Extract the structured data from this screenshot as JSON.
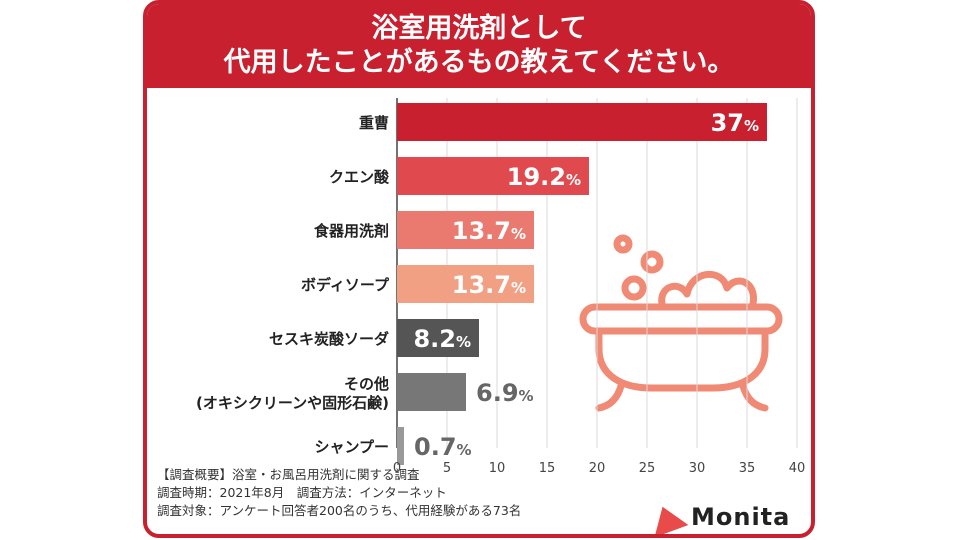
{
  "header": {
    "title_line1": "浴室用洗剤として",
    "title_line2": "代用したことがあるもの教えてください。"
  },
  "chart_data": {
    "type": "bar",
    "orientation": "horizontal",
    "title": "浴室用洗剤として代用したことがあるもの教えてください。",
    "categories": [
      "重曹",
      "クエン酸",
      "食器用洗剤",
      "ボディソープ",
      "セスキ炭酸ソーダ",
      "その他\n(オキシクリーンや固形石鹸)",
      "シャンプー"
    ],
    "values": [
      37,
      19.2,
      13.7,
      13.7,
      8.2,
      6.9,
      0.7
    ],
    "labels": [
      "37",
      "19.2",
      "13.7",
      "13.7",
      "8.2",
      "6.9",
      "0.7"
    ],
    "unit": "%",
    "colors": [
      "#c8202f",
      "#e04a4f",
      "#ea7a70",
      "#f2a084",
      "#555555",
      "#777777",
      "#999999"
    ],
    "xlim": [
      0,
      40
    ],
    "xticks": [
      0,
      5,
      10,
      15,
      20,
      25,
      30,
      35,
      40
    ],
    "grid": true,
    "label_outside_below": 7
  },
  "notes": [
    "【調査概要】浴室・お風呂用洗剤に関する調査",
    "調査時期：2021年8月　調査方法：インターネット",
    "調査対象：アンケート回答者200名のうち、代用経験がある73名"
  ],
  "brand": {
    "name": "Monita",
    "color": "#e94a4a"
  },
  "illustration": {
    "icon": "bathtub-icon",
    "color": "#f08a74"
  }
}
